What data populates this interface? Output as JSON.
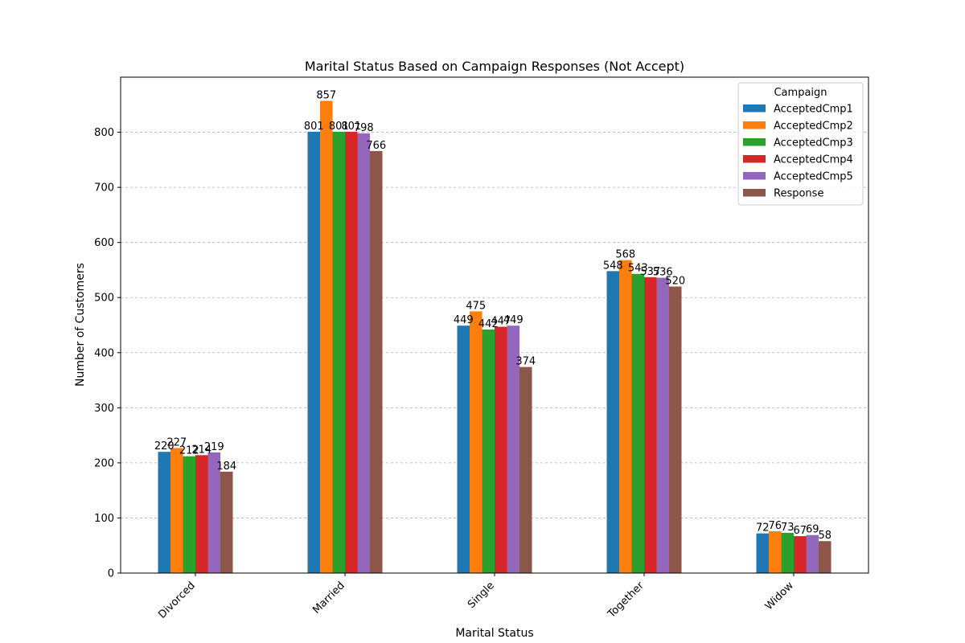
{
  "chart_data": {
    "type": "bar",
    "title": "Marital Status Based on Campaign Responses (Not Accept)",
    "xlabel": "Marital Status",
    "ylabel": "Number of Customers",
    "ylim": [
      0,
      900
    ],
    "yticks": [
      0,
      100,
      200,
      300,
      400,
      500,
      600,
      700,
      800
    ],
    "grid": "y-dashed",
    "legend": {
      "title": "Campaign",
      "placement": "top-right"
    },
    "categories": [
      "Divorced",
      "Married",
      "Single",
      "Together",
      "Widow"
    ],
    "series": [
      {
        "name": "AcceptedCmp1",
        "color": "#1f77b4",
        "values": [
          220,
          801,
          449,
          548,
          72
        ]
      },
      {
        "name": "AcceptedCmp2",
        "color": "#ff7f0e",
        "values": [
          227,
          857,
          475,
          568,
          76
        ]
      },
      {
        "name": "AcceptedCmp3",
        "color": "#2ca02c",
        "values": [
          212,
          801,
          442,
          543,
          73
        ]
      },
      {
        "name": "AcceptedCmp4",
        "color": "#d62728",
        "values": [
          214,
          801,
          447,
          537,
          67
        ]
      },
      {
        "name": "AcceptedCmp5",
        "color": "#9467bd",
        "values": [
          219,
          798,
          449,
          536,
          69
        ]
      },
      {
        "name": "Response",
        "color": "#8c564b",
        "values": [
          184,
          766,
          374,
          520,
          58
        ]
      }
    ]
  }
}
